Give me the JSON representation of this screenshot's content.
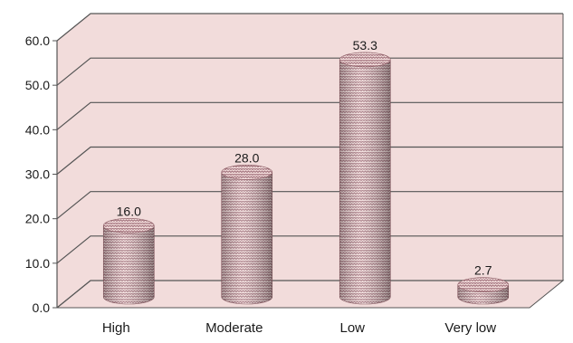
{
  "chart_data": {
    "type": "bar",
    "style": "3d-cylinder",
    "categories": [
      "High",
      "Moderate",
      "Low",
      "Very low"
    ],
    "series": [
      {
        "values": [
          16.0,
          28.0,
          53.3,
          2.7
        ],
        "data_labels": [
          "16.0",
          "28.0",
          "53.3",
          "2.7"
        ]
      }
    ],
    "title": "",
    "xlabel": "",
    "ylabel": "",
    "ylim": [
      0,
      60
    ],
    "y_ticks": [
      "0.0",
      "10.0",
      "20.0",
      "30.0",
      "40.0",
      "50.0",
      "60.0"
    ],
    "grid": true,
    "legend": "none",
    "colors": {
      "background": "#ffffff",
      "plot_wall": "#f2dcdb",
      "gridline": "#555555",
      "bar_fill": "#f2dcdb",
      "bar_pattern": "#a0707a",
      "text": "#1a1a1a"
    }
  }
}
